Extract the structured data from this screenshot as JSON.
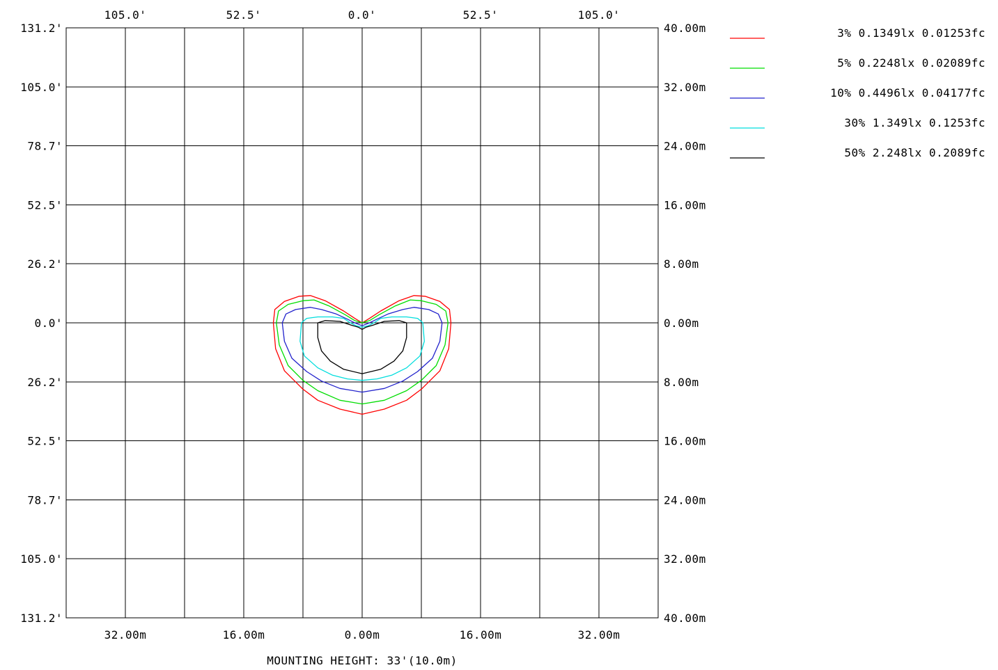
{
  "chart_data": {
    "type": "line",
    "title": "",
    "caption": "MOUNTING HEIGHT: 33'(10.0m)",
    "xlim": [
      -40,
      40
    ],
    "ylim": [
      -40,
      40
    ],
    "grid": true,
    "legend_position": "top-right",
    "x_ticks_top_ft": [
      "105.0'",
      "52.5'",
      "0.0'",
      "52.5'",
      "105.0'"
    ],
    "x_ticks_bottom_m": [
      "32.00m",
      "16.00m",
      "0.00m",
      "16.00m",
      "32.00m"
    ],
    "y_ticks_left_ft": [
      "131.2'",
      "105.0'",
      "78.7'",
      "52.5'",
      "26.2'",
      "0.0'",
      "26.2'",
      "52.5'",
      "78.7'",
      "105.0'",
      "131.2'"
    ],
    "y_ticks_right_m": [
      "40.00m",
      "32.00m",
      "24.00m",
      "16.00m",
      "8.00m",
      "0.00m",
      "8.00m",
      "16.00m",
      "24.00m",
      "32.00m",
      "40.00m"
    ],
    "series": [
      {
        "name": "3% 0.1349lx 0.01253fc",
        "color": "#ff0000",
        "points": [
          [
            -12,
            0
          ],
          [
            -11.8,
            1.8
          ],
          [
            -10.5,
            2.9
          ],
          [
            -8.5,
            3.6
          ],
          [
            -7,
            3.7
          ],
          [
            -5,
            3
          ],
          [
            -2.5,
            1.6
          ],
          [
            -1,
            0.6
          ],
          [
            0,
            0
          ],
          [
            1,
            0.6
          ],
          [
            2.5,
            1.6
          ],
          [
            5,
            3
          ],
          [
            7,
            3.7
          ],
          [
            8.5,
            3.6
          ],
          [
            10.5,
            2.9
          ],
          [
            11.8,
            1.8
          ],
          [
            12,
            0
          ],
          [
            11.7,
            -3.5
          ],
          [
            10.5,
            -6.5
          ],
          [
            8,
            -9
          ],
          [
            6,
            -10.5
          ],
          [
            3,
            -11.7
          ],
          [
            0,
            -12.4
          ],
          [
            -3,
            -11.7
          ],
          [
            -6,
            -10.5
          ],
          [
            -8,
            -9
          ],
          [
            -10.5,
            -6.5
          ],
          [
            -11.7,
            -3.5
          ],
          [
            -12,
            0
          ]
        ]
      },
      {
        "name": "5% 0.2248lx 0.02089fc",
        "color": "#00dd00",
        "points": [
          [
            -11.6,
            0
          ],
          [
            -11.3,
            1.6
          ],
          [
            -10,
            2.5
          ],
          [
            -8,
            3
          ],
          [
            -6.5,
            3.1
          ],
          [
            -4.5,
            2.3
          ],
          [
            -2.3,
            1.1
          ],
          [
            -1,
            0.3
          ],
          [
            0,
            0
          ],
          [
            1,
            0.3
          ],
          [
            2.3,
            1.1
          ],
          [
            4.5,
            2.3
          ],
          [
            6.5,
            3.1
          ],
          [
            8,
            3
          ],
          [
            10,
            2.5
          ],
          [
            11.3,
            1.6
          ],
          [
            11.6,
            0
          ],
          [
            11.2,
            -3
          ],
          [
            10,
            -5.8
          ],
          [
            8,
            -7.8
          ],
          [
            6,
            -9.2
          ],
          [
            3,
            -10.5
          ],
          [
            0,
            -11
          ],
          [
            -3,
            -10.5
          ],
          [
            -6,
            -9.2
          ],
          [
            -8,
            -7.8
          ],
          [
            -10,
            -5.8
          ],
          [
            -11.2,
            -3
          ],
          [
            -11.6,
            0
          ]
        ]
      },
      {
        "name": "10% 0.4496lx 0.04177fc",
        "color": "#2222cc",
        "points": [
          [
            -10.8,
            0
          ],
          [
            -10.3,
            1.2
          ],
          [
            -9,
            1.8
          ],
          [
            -7,
            2.1
          ],
          [
            -5.5,
            1.8
          ],
          [
            -3.5,
            1.2
          ],
          [
            -2,
            0.5
          ],
          [
            -1,
            0
          ],
          [
            0,
            -0.4
          ],
          [
            1,
            0
          ],
          [
            2,
            0.5
          ],
          [
            3.5,
            1.2
          ],
          [
            5.5,
            1.8
          ],
          [
            7,
            2.1
          ],
          [
            9,
            1.8
          ],
          [
            10.3,
            1.2
          ],
          [
            10.8,
            0
          ],
          [
            10.5,
            -2.5
          ],
          [
            9.5,
            -4.8
          ],
          [
            7.5,
            -6.6
          ],
          [
            5.5,
            -7.9
          ],
          [
            3,
            -8.9
          ],
          [
            0,
            -9.4
          ],
          [
            -3,
            -8.9
          ],
          [
            -5.5,
            -7.9
          ],
          [
            -7.5,
            -6.6
          ],
          [
            -9.5,
            -4.8
          ],
          [
            -10.5,
            -2.5
          ],
          [
            -10.8,
            0
          ]
        ]
      },
      {
        "name": "30% 1.349lx 0.1253fc",
        "color": "#00dddd",
        "points": [
          [
            -8.2,
            0
          ],
          [
            -7.5,
            0.6
          ],
          [
            -6,
            0.8
          ],
          [
            -4,
            0.8
          ],
          [
            -2.5,
            0.6
          ],
          [
            -1.6,
            0
          ],
          [
            -0.8,
            -0.4
          ],
          [
            0,
            -0.6
          ],
          [
            0.8,
            -0.4
          ],
          [
            1.6,
            0
          ],
          [
            2.5,
            0.6
          ],
          [
            4,
            0.8
          ],
          [
            6,
            0.8
          ],
          [
            7.5,
            0.6
          ],
          [
            8.2,
            0
          ],
          [
            8.4,
            -2.5
          ],
          [
            7.8,
            -4.5
          ],
          [
            6,
            -6.1
          ],
          [
            4,
            -7.1
          ],
          [
            2,
            -7.6
          ],
          [
            0,
            -7.8
          ],
          [
            -2,
            -7.6
          ],
          [
            -4,
            -7.1
          ],
          [
            -6,
            -6.1
          ],
          [
            -7.8,
            -4.5
          ],
          [
            -8.4,
            -2.5
          ],
          [
            -8.2,
            0
          ]
        ]
      },
      {
        "name": "50% 2.248lx 0.2089fc",
        "color": "#000000",
        "points": [
          [
            -6,
            0
          ],
          [
            -5,
            0.3
          ],
          [
            -3,
            0.2
          ],
          [
            -1.5,
            -0.3
          ],
          [
            -0.5,
            -0.6
          ],
          [
            0,
            -0.9
          ],
          [
            0.5,
            -0.6
          ],
          [
            1.5,
            -0.3
          ],
          [
            3,
            0.2
          ],
          [
            5,
            0.3
          ],
          [
            6,
            0
          ],
          [
            6,
            -2
          ],
          [
            5.5,
            -3.8
          ],
          [
            4.3,
            -5.2
          ],
          [
            2.5,
            -6.3
          ],
          [
            0,
            -6.9
          ],
          [
            -2.5,
            -6.3
          ],
          [
            -4.3,
            -5.2
          ],
          [
            -5.5,
            -3.8
          ],
          [
            -6,
            -2
          ],
          [
            -6,
            0
          ]
        ]
      }
    ]
  }
}
